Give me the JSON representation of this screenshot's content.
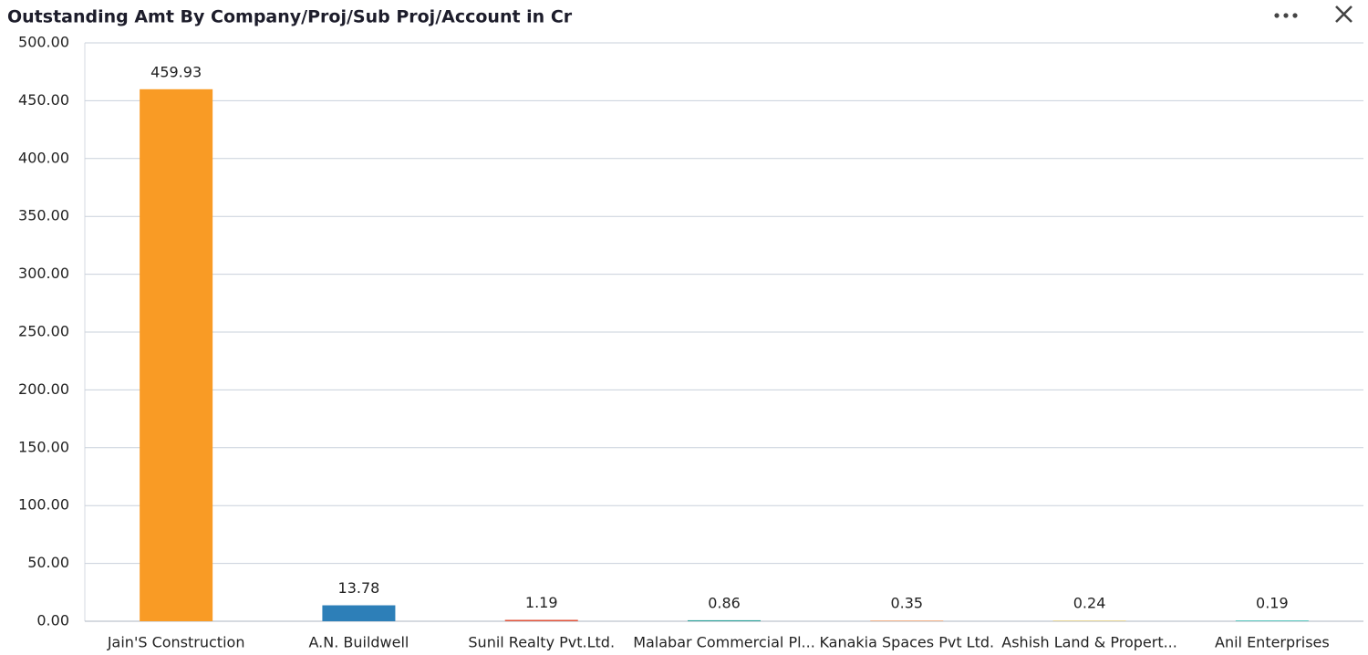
{
  "chart_data": {
    "type": "bar",
    "title": "Outstanding Amt By Company/Proj/Sub Proj/Account in Cr",
    "categories": [
      "Jain'S Construction",
      "A.N. Buildwell",
      "Sunil Realty Pvt.Ltd.",
      "Malabar Commercial Pl...",
      "Kanakia Spaces Pvt Ltd.",
      "Ashish Land & Propert...",
      "Anil Enterprises"
    ],
    "values": [
      459.93,
      13.78,
      1.19,
      0.86,
      0.35,
      0.24,
      0.19
    ],
    "colors": [
      "#f99b25",
      "#2d7fb8",
      "#e0533a",
      "#2aa198",
      "#f2b48c",
      "#e6d699",
      "#5cc7bf"
    ],
    "ylim": [
      0,
      500
    ],
    "yticks": [
      {
        "value": 0,
        "label": "0.00"
      },
      {
        "value": 50,
        "label": "50.00"
      },
      {
        "value": 100,
        "label": "100.00"
      },
      {
        "value": 150,
        "label": "150.00"
      },
      {
        "value": 200,
        "label": "200.00"
      },
      {
        "value": 250,
        "label": "250.00"
      },
      {
        "value": 300,
        "label": "300.00"
      },
      {
        "value": 350,
        "label": "350.00"
      },
      {
        "value": 400,
        "label": "400.00"
      },
      {
        "value": 450,
        "label": "450.00"
      },
      {
        "value": 500,
        "label": "500.00"
      }
    ],
    "grid": true
  }
}
